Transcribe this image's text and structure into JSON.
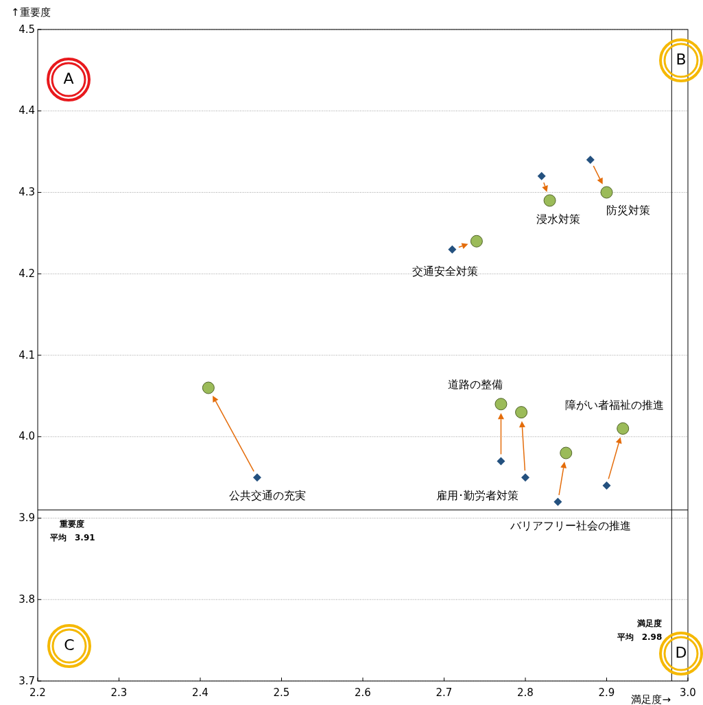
{
  "chart_data": {
    "type": "scatter",
    "xlabel": "満足度→",
    "ylabel": "↑重要度",
    "xlim": [
      2.2,
      3.0
    ],
    "xticks": [
      2.2,
      2.3,
      2.4,
      2.5,
      2.6,
      2.7,
      2.8,
      2.9,
      {
        "value": 3,
        "label": "3.0"
      }
    ],
    "ylim": [
      3.7,
      4.5
    ],
    "yticks": [
      3.7,
      3.8,
      3.9,
      {
        "value": 4,
        "label": "4.0"
      },
      4.1,
      4.2,
      4.3,
      4.4,
      4.5
    ],
    "grid": "y",
    "series": [
      {
        "color": "#24517f",
        "marker": "diamond",
        "x": [
          2.47,
          2.71,
          2.82,
          2.88,
          2.8,
          2.77,
          2.84,
          2.9
        ],
        "values": [
          3.95,
          4.23,
          4.32,
          4.34,
          3.95,
          3.97,
          3.92,
          3.94
        ]
      },
      {
        "color": "#9bbb59",
        "marker": "circle",
        "x": [
          2.41,
          2.74,
          2.83,
          2.9,
          2.795,
          2.77,
          2.85,
          2.92
        ],
        "values": [
          4.06,
          4.24,
          4.29,
          4.3,
          4.03,
          4.04,
          3.98,
          4.01
        ]
      }
    ],
    "ref_lines": [
      {
        "axis": "x",
        "value": 2.98,
        "label": "平均　2.98",
        "color": "#000000"
      },
      {
        "axis": "y",
        "value": 3.91,
        "label": "平均　3.91",
        "color": "#000000"
      }
    ],
    "annotations": [
      {
        "text": "浸水対策",
        "x": 2.83,
        "y": 4.29
      },
      {
        "text": "防災対策",
        "x": 2.9,
        "y": 4.3
      },
      {
        "text": "交通安全対策",
        "x": 2.71,
        "y": 4.23
      },
      {
        "text": "道路の整備",
        "x": 2.77,
        "y": 4.04
      },
      {
        "text": "障がい者福祉の推進",
        "x": 2.92,
        "y": 4.01
      },
      {
        "text": "公共交通の充実",
        "x": 2.47,
        "y": 3.95
      },
      {
        "text": "雇用･勤労者対策",
        "x": 2.8,
        "y": 3.95
      },
      {
        "text": "バリアフリー社会の推進",
        "x": 2.84,
        "y": 3.92
      },
      "A",
      "B",
      "C",
      "D",
      "満足度",
      "重要度"
    ]
  }
}
